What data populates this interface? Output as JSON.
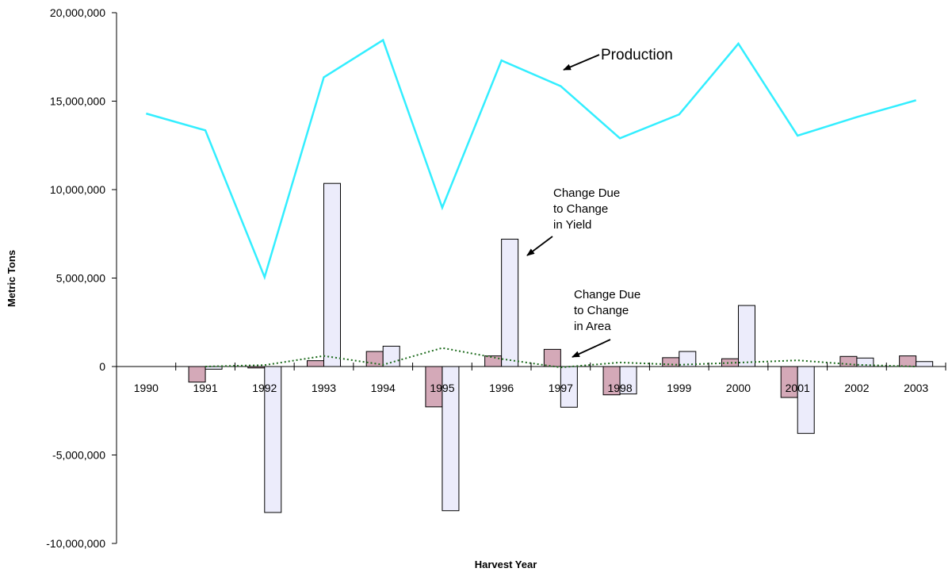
{
  "chart_data": {
    "type": "bar",
    "xlabel": "Harvest Year",
    "ylabel": "Metric Tons",
    "ylim": [
      -10000000,
      20000000
    ],
    "yticks": [
      20000000,
      15000000,
      10000000,
      5000000,
      0,
      -5000000,
      -10000000
    ],
    "ytick_labels": [
      "20,000,000",
      "15,000,000",
      "10,000,000",
      "5,000,000",
      "0",
      "-5,000,000",
      "-10,000,000"
    ],
    "categories": [
      "1990",
      "1991",
      "1992",
      "1993",
      "1994",
      "1995",
      "1996",
      "1997",
      "1998",
      "1999",
      "2000",
      "2001",
      "2002",
      "2003"
    ],
    "grid": false,
    "series": [
      {
        "name": "Production",
        "kind": "line",
        "color": "#33eeff",
        "values": [
          14300000,
          13350000,
          5050000,
          16350000,
          18450000,
          8980000,
          17300000,
          15850000,
          12900000,
          14250000,
          18250000,
          13050000,
          14100000,
          15050000
        ]
      },
      {
        "name": "Change Due to Change in Area",
        "kind": "bar",
        "color": "#d4a9b8",
        "values": [
          null,
          -880000,
          -80000,
          330000,
          850000,
          -2280000,
          600000,
          970000,
          -1600000,
          500000,
          440000,
          -1750000,
          570000,
          600000
        ]
      },
      {
        "name": "Change Due to Change in Yield",
        "kind": "bar",
        "color": "#ececfb",
        "values": [
          null,
          -150000,
          -8250000,
          10350000,
          1150000,
          -8150000,
          7200000,
          -2300000,
          -1550000,
          850000,
          3450000,
          -3780000,
          480000,
          280000
        ]
      },
      {
        "kind": "dotted-line",
        "color": "#1d6b1d",
        "values": [
          null,
          0,
          80000,
          600000,
          100000,
          1050000,
          430000,
          -50000,
          230000,
          100000,
          220000,
          350000,
          100000,
          0
        ]
      }
    ],
    "annotations": [
      {
        "id": "production",
        "lines": [
          "Production"
        ]
      },
      {
        "id": "yield",
        "lines": [
          "Change Due",
          "to Change",
          "in Yield"
        ]
      },
      {
        "id": "area",
        "lines": [
          "Change Due",
          "to Change",
          "in Area"
        ]
      }
    ]
  }
}
